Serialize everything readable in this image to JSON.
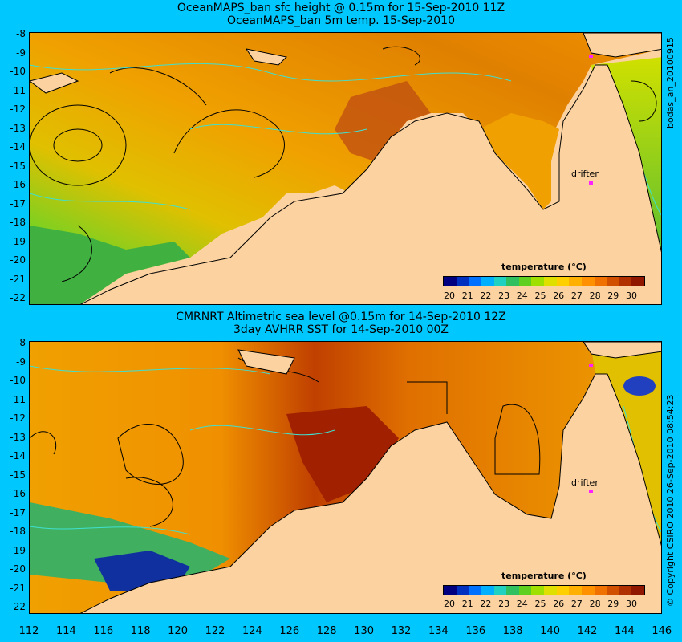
{
  "top": {
    "title1": "OceanMAPS_ban sfc height @ 0.15m for 15-Sep-2010 11Z",
    "title2": "OceanMAPS_ban 5m temp. 15-Sep-2010",
    "side_label": "bodas_an_20100915"
  },
  "bottom": {
    "title1": "CMRNRT Altimetric sea level  @0.15m  for 14-Sep-2010 12Z",
    "title2": "3day AVHRR SST for 14-Sep-2010 00Z",
    "side_label": "© Copyright CSIRO 2010    26-Sep-2010 08:54:23"
  },
  "colorbar": {
    "title": "temperature (°C)",
    "labels": [
      "20",
      "21",
      "22",
      "23",
      "24",
      "25",
      "26",
      "27",
      "28",
      "29",
      "30"
    ],
    "colors": [
      "#000080",
      "#0030c0",
      "#0070ff",
      "#00b0ff",
      "#20d0c0",
      "#30c060",
      "#60d020",
      "#a0e000",
      "#e0e000",
      "#ffd000",
      "#ffb000",
      "#ff9000",
      "#f07000",
      "#d05000",
      "#b03000",
      "#901800"
    ]
  },
  "axis": {
    "y_labels": [
      "-8",
      "-9",
      "-10",
      "-11",
      "-12",
      "-13",
      "-14",
      "-15",
      "-16",
      "-17",
      "-18",
      "-19",
      "-20",
      "-21",
      "-22"
    ],
    "x_labels": [
      "112",
      "114",
      "116",
      "118",
      "120",
      "122",
      "124",
      "126",
      "128",
      "130",
      "132",
      "134",
      "136",
      "138",
      "140",
      "142",
      "144",
      "146"
    ]
  },
  "drifter_label": "drifter",
  "colors": {
    "background": "#00c8ff",
    "land": "#fcd3a0"
  }
}
